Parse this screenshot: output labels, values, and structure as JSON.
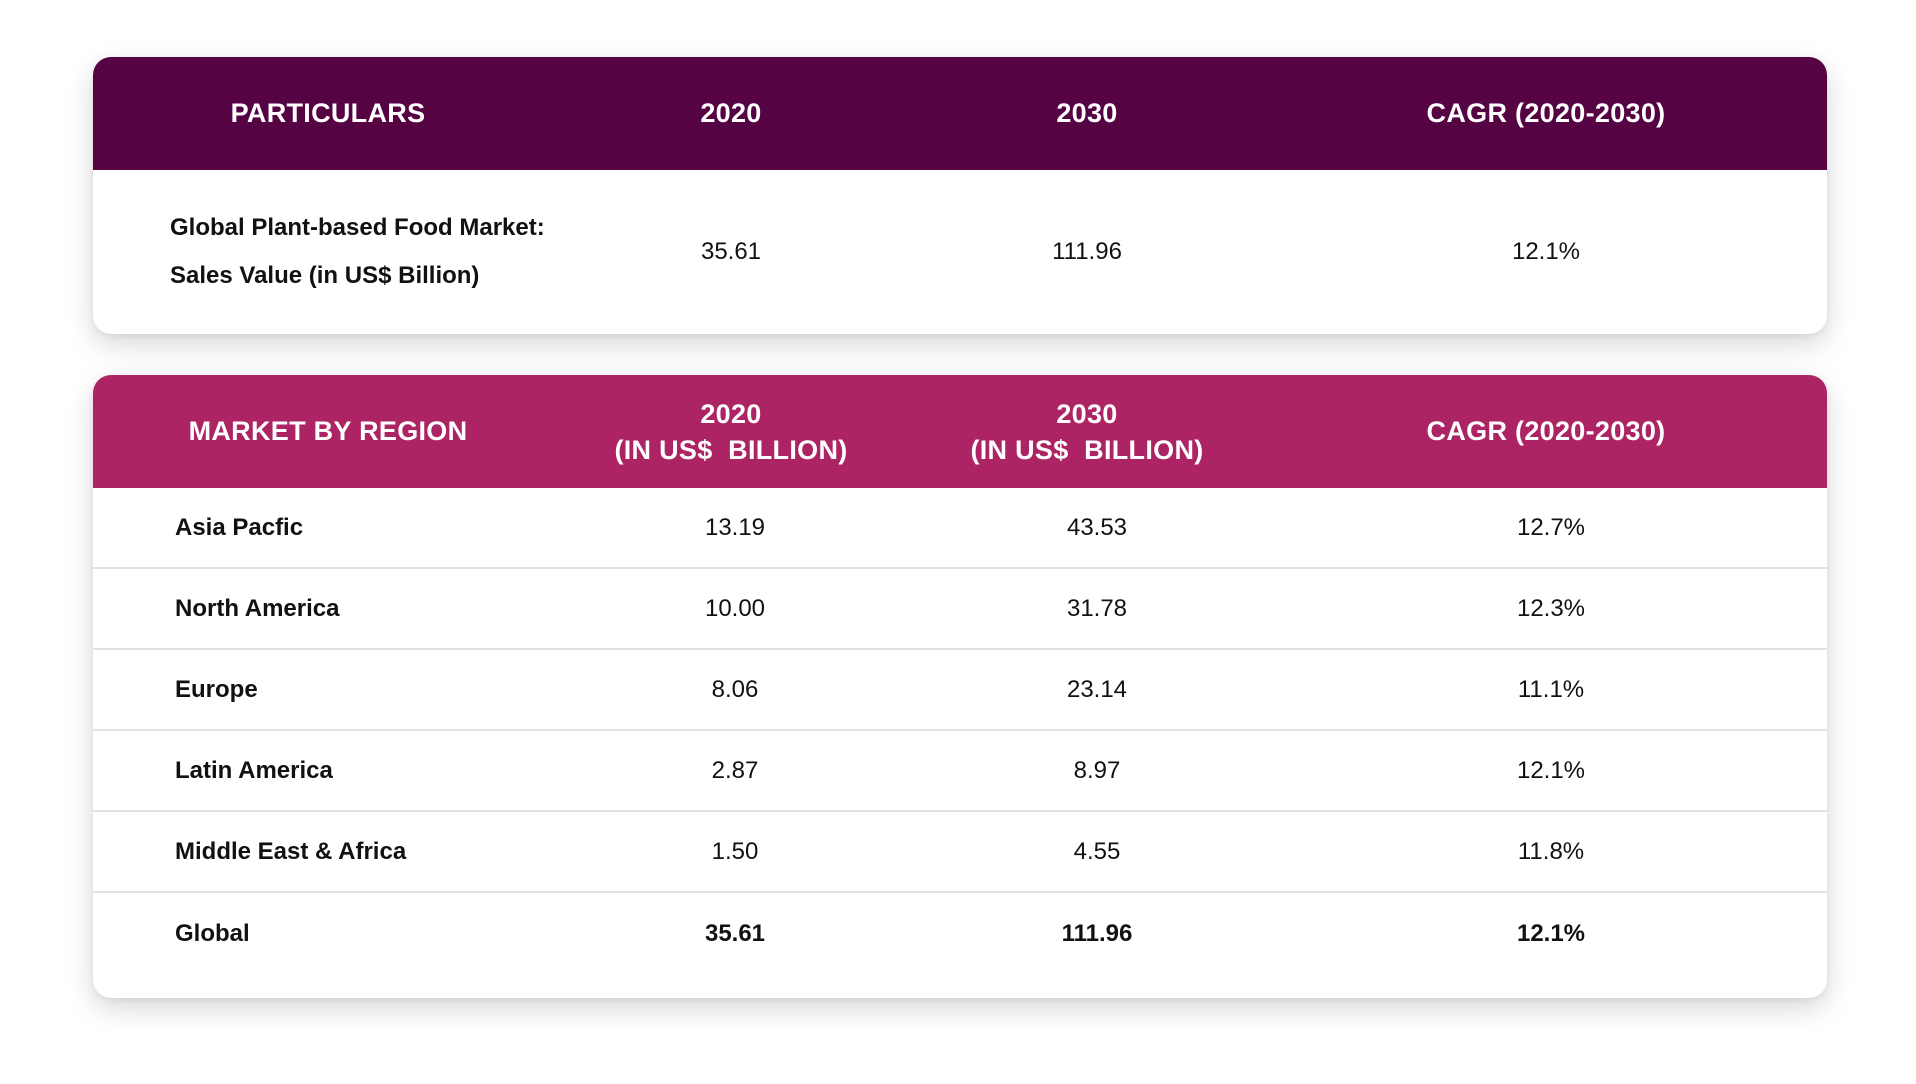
{
  "summary_table": {
    "headers": [
      "PARTICULARS",
      "2020",
      "2030",
      "CAGR (2020-2030)"
    ],
    "row": {
      "label_line1": "Global Plant-based Food Market:",
      "label_line2": "Sales Value (in US$ Billion)",
      "v2020": "35.61",
      "v2030": "111.96",
      "cagr": "12.1%"
    }
  },
  "region_table": {
    "headers": {
      "region": "MARKET BY REGION",
      "y2020_line1": "2020",
      "y2020_line2": "(IN US$  BILLION)",
      "y2030_line1": "2030",
      "y2030_line2": "(IN US$  BILLION)",
      "cagr": "CAGR (2020-2030)"
    },
    "rows": [
      {
        "region": "Asia Pacfic",
        "v2020": "13.19",
        "v2030": "43.53",
        "cagr": "12.7%"
      },
      {
        "region": "North America",
        "v2020": "10.00",
        "v2030": "31.78",
        "cagr": "12.3%"
      },
      {
        "region": "Europe",
        "v2020": "8.06",
        "v2030": "23.14",
        "cagr": "11.1%"
      },
      {
        "region": "Latin America",
        "v2020": "2.87",
        "v2030": "8.97",
        "cagr": "12.1%"
      },
      {
        "region": "Middle East & Africa",
        "v2020": "1.50",
        "v2030": "4.55",
        "cagr": "11.8%"
      },
      {
        "region": "Global",
        "v2020": "35.61",
        "v2030": "111.96",
        "cagr": "12.1%"
      }
    ]
  },
  "colors": {
    "summary_header": "#560343",
    "region_header": "#ad2464"
  }
}
